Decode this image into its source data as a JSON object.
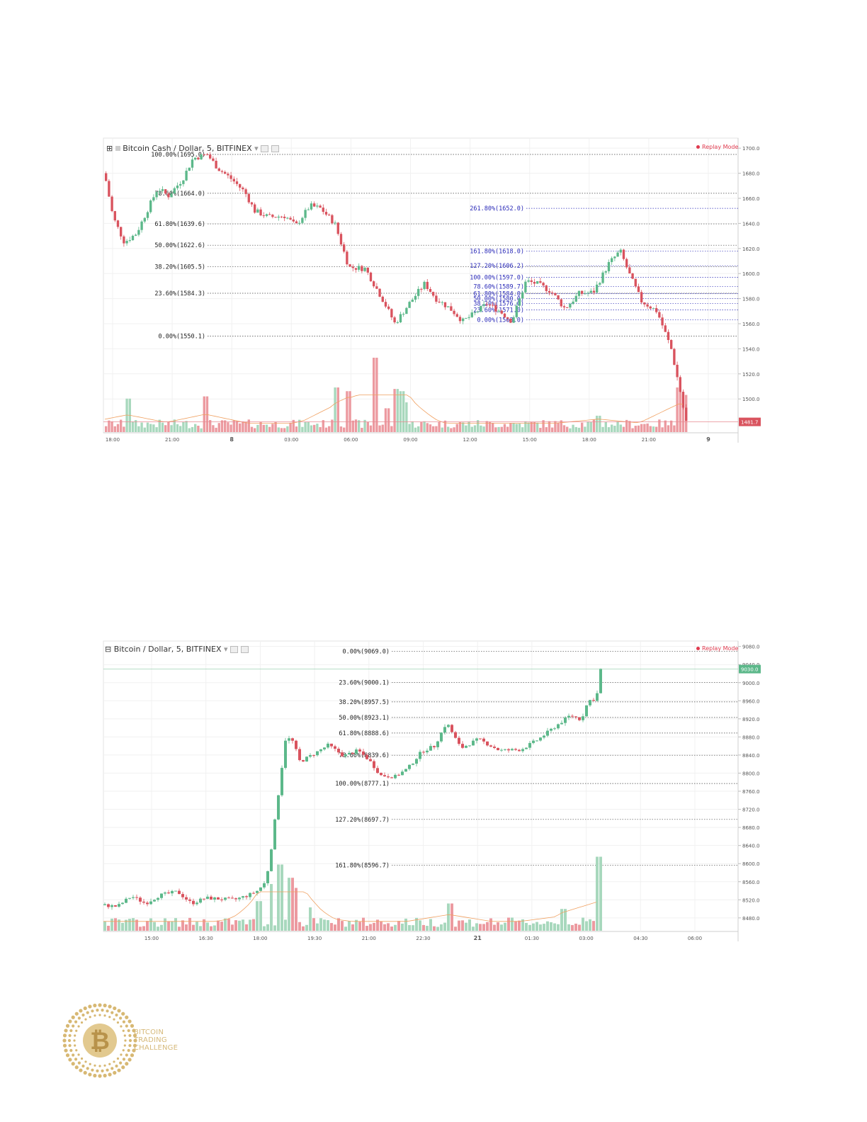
{
  "colors": {
    "up": "#5cb88a",
    "down": "#d9535e",
    "volume_up": "#a8d8bd",
    "volume_down": "#ec9aa0",
    "fib_dark": "#444444",
    "fib_blue": "#2a2ab8",
    "ma": "#f0a060"
  },
  "chart_data": [
    {
      "type": "candlestick",
      "title": "Bitcoin Cash / Dollar, 5, BITFINEX",
      "badge": "Replay Mode",
      "x_ticks": [
        "18:00",
        "21:00",
        "8",
        "03:00",
        "06:00",
        "09:00",
        "12:00",
        "15:00",
        "18:00",
        "21:00",
        "9"
      ],
      "y_ticks": [
        "1700.0",
        "1680.0",
        "1660.0",
        "1640.0",
        "1620.0",
        "1600.0",
        "1580.0",
        "1560.0",
        "1540.0",
        "1520.0",
        "1500.0"
      ],
      "ylim": [
        1473,
        1708
      ],
      "last_price": "1481.7",
      "fib_left": [
        {
          "label": "100.00%(1695.0)",
          "value": 1695.0
        },
        {
          "label": "78.60%(1664.0)",
          "value": 1664.0
        },
        {
          "label": "61.80%(1639.6)",
          "value": 1639.6
        },
        {
          "label": "50.00%(1622.6)",
          "value": 1622.6
        },
        {
          "label": "38.20%(1605.5)",
          "value": 1605.5
        },
        {
          "label": "23.60%(1584.3)",
          "value": 1584.3
        },
        {
          "label": "0.00%(1550.1)",
          "value": 1550.1
        }
      ],
      "fib_right": [
        {
          "label": "261.80%(1652.0)",
          "value": 1652.0
        },
        {
          "label": "161.80%(1618.0)",
          "value": 1618.0
        },
        {
          "label": "127.20%(1606.2)",
          "value": 1606.2
        },
        {
          "label": "100.00%(1597.0)",
          "value": 1597.0
        },
        {
          "label": "78.60%(1589.7)",
          "value": 1589.7
        },
        {
          "label": "61.80%(1584.0)",
          "value": 1584.0
        },
        {
          "label": "50.00%(1580.0)",
          "value": 1580.0
        },
        {
          "label": "38.20%(1576.0)",
          "value": 1576.0
        },
        {
          "label": "23.60%(1571.0)",
          "value": 1571.0
        },
        {
          "label": "0.00%(1563.0)",
          "value": 1563.0
        }
      ],
      "path_points": [
        [
          0,
          1680
        ],
        [
          12,
          1645
        ],
        [
          28,
          1625
        ],
        [
          45,
          1632
        ],
        [
          60,
          1650
        ],
        [
          75,
          1668
        ],
        [
          90,
          1662
        ],
        [
          110,
          1675
        ],
        [
          125,
          1692
        ],
        [
          145,
          1695
        ],
        [
          160,
          1684
        ],
        [
          180,
          1675
        ],
        [
          198,
          1665
        ],
        [
          212,
          1650
        ],
        [
          232,
          1645
        ],
        [
          255,
          1646
        ],
        [
          270,
          1638
        ],
        [
          290,
          1654
        ],
        [
          305,
          1652
        ],
        [
          325,
          1640
        ],
        [
          345,
          1605
        ],
        [
          368,
          1604
        ],
        [
          392,
          1580
        ],
        [
          410,
          1560
        ],
        [
          430,
          1576
        ],
        [
          452,
          1592
        ],
        [
          468,
          1580
        ],
        [
          488,
          1572
        ],
        [
          506,
          1562
        ],
        [
          522,
          1568
        ],
        [
          540,
          1576
        ],
        [
          558,
          1570
        ],
        [
          575,
          1562
        ],
        [
          595,
          1594
        ],
        [
          610,
          1592
        ],
        [
          630,
          1586
        ],
        [
          650,
          1572
        ],
        [
          670,
          1584
        ],
        [
          690,
          1585
        ],
        [
          712,
          1608
        ],
        [
          728,
          1618
        ],
        [
          742,
          1598
        ],
        [
          758,
          1578
        ],
        [
          780,
          1570
        ],
        [
          800,
          1540
        ],
        [
          815,
          1500
        ],
        [
          820,
          1482
        ]
      ],
      "volume_spikes": [
        [
          32,
          0.45
        ],
        [
          142,
          0.48
        ],
        [
          326,
          0.6
        ],
        [
          342,
          0.55
        ],
        [
          380,
          1.0
        ],
        [
          398,
          0.32
        ],
        [
          408,
          0.58
        ],
        [
          418,
          0.55
        ],
        [
          422,
          0.4
        ],
        [
          697,
          0.22
        ],
        [
          810,
          0.6
        ],
        [
          818,
          0.5
        ]
      ]
    },
    {
      "type": "candlestick",
      "title": "Bitcoin / Dollar, 5, BITFINEX",
      "badge": "Replay Mode",
      "x_ticks": [
        "15:00",
        "16:30",
        "18:00",
        "19:30",
        "21:00",
        "22:30",
        "21",
        "01:30",
        "03:00",
        "04:30",
        "06:00"
      ],
      "y_ticks": [
        "9080.0",
        "9040.0",
        "9000.0",
        "8960.0",
        "8920.0",
        "8880.0",
        "8840.0",
        "8800.0",
        "8760.0",
        "8720.0",
        "8680.0",
        "8640.0",
        "8600.0",
        "8560.0",
        "8520.0",
        "8480.0"
      ],
      "ylim": [
        8450,
        9092
      ],
      "last_price": "9030.0",
      "fib_left": [
        {
          "label": "0.00%(9069.0)",
          "value": 9069.0
        },
        {
          "label": "23.60%(9000.1)",
          "value": 9000.1
        },
        {
          "label": "38.20%(8957.5)",
          "value": 8957.5
        },
        {
          "label": "50.00%(8923.1)",
          "value": 8923.1
        },
        {
          "label": "61.80%(8888.6)",
          "value": 8888.6
        },
        {
          "label": "78.60%(8839.6)",
          "value": 8839.6
        },
        {
          "label": "100.00%(8777.1)",
          "value": 8777.1
        },
        {
          "label": "127.20%(8697.7)",
          "value": 8697.7
        },
        {
          "label": "161.80%(8596.7)",
          "value": 8596.7
        }
      ],
      "fib_right": [],
      "path_points": [
        [
          0,
          8508
        ],
        [
          20,
          8505
        ],
        [
          40,
          8528
        ],
        [
          60,
          8512
        ],
        [
          80,
          8530
        ],
        [
          105,
          8538
        ],
        [
          125,
          8512
        ],
        [
          145,
          8524
        ],
        [
          165,
          8522
        ],
        [
          185,
          8520
        ],
        [
          205,
          8530
        ],
        [
          218,
          8540
        ],
        [
          230,
          8560
        ],
        [
          238,
          8640
        ],
        [
          248,
          8760
        ],
        [
          258,
          8880
        ],
        [
          268,
          8870
        ],
        [
          278,
          8825
        ],
        [
          295,
          8840
        ],
        [
          318,
          8862
        ],
        [
          340,
          8838
        ],
        [
          360,
          8850
        ],
        [
          375,
          8830
        ],
        [
          392,
          8795
        ],
        [
          412,
          8792
        ],
        [
          430,
          8810
        ],
        [
          450,
          8848
        ],
        [
          468,
          8860
        ],
        [
          485,
          8912
        ],
        [
          505,
          8855
        ],
        [
          530,
          8875
        ],
        [
          560,
          8850
        ],
        [
          590,
          8852
        ],
        [
          615,
          8875
        ],
        [
          640,
          8905
        ],
        [
          660,
          8928
        ],
        [
          675,
          8918
        ],
        [
          685,
          8960
        ],
        [
          697,
          8965
        ],
        [
          700,
          9030
        ]
      ],
      "volume_spikes": [
        [
          218,
          0.38
        ],
        [
          235,
          0.6
        ],
        [
          248,
          0.85
        ],
        [
          262,
          0.68
        ],
        [
          270,
          0.55
        ],
        [
          290,
          0.3
        ],
        [
          488,
          0.35
        ],
        [
          648,
          0.28
        ],
        [
          697,
          0.95
        ]
      ]
    }
  ],
  "logo": {
    "line1": "BITCOIN",
    "line2": "TRADING",
    "line3": "CHALLENGE"
  }
}
